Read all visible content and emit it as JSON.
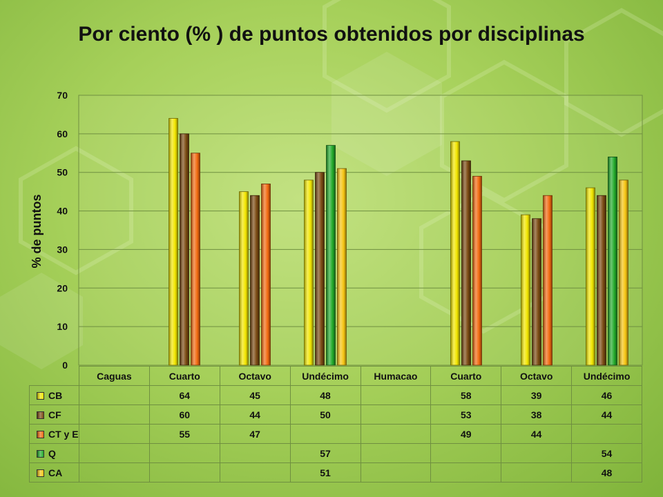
{
  "chart_data": {
    "type": "bar",
    "title": "Por ciento (% ) de puntos obtenidos por disciplinas",
    "ylabel": "% de puntos",
    "xlabel": "",
    "ylim": [
      0,
      70
    ],
    "yticks": [
      0,
      10,
      20,
      30,
      40,
      50,
      60,
      70
    ],
    "grid": true,
    "categories": [
      "Caguas",
      "Cuarto",
      "Octavo",
      "Undécimo",
      "Humacao",
      "Cuarto",
      "Octavo",
      "Undécimo"
    ],
    "series": [
      {
        "name": "CB",
        "color": "#f2e600",
        "values": [
          null,
          64,
          45,
          48,
          null,
          58,
          39,
          46
        ]
      },
      {
        "name": "CF",
        "color": "#7a4a12",
        "values": [
          null,
          60,
          44,
          50,
          null,
          53,
          38,
          44
        ]
      },
      {
        "name": "CT y E",
        "color": "#f26a10",
        "values": [
          null,
          55,
          47,
          null,
          null,
          49,
          44,
          null
        ]
      },
      {
        "name": "Q",
        "color": "#22aa2a",
        "values": [
          null,
          null,
          null,
          57,
          null,
          null,
          null,
          54
        ]
      },
      {
        "name": "CA",
        "color": "#f5c412",
        "values": [
          null,
          null,
          null,
          51,
          null,
          null,
          null,
          48
        ]
      }
    ],
    "legend_position": "data-table"
  }
}
